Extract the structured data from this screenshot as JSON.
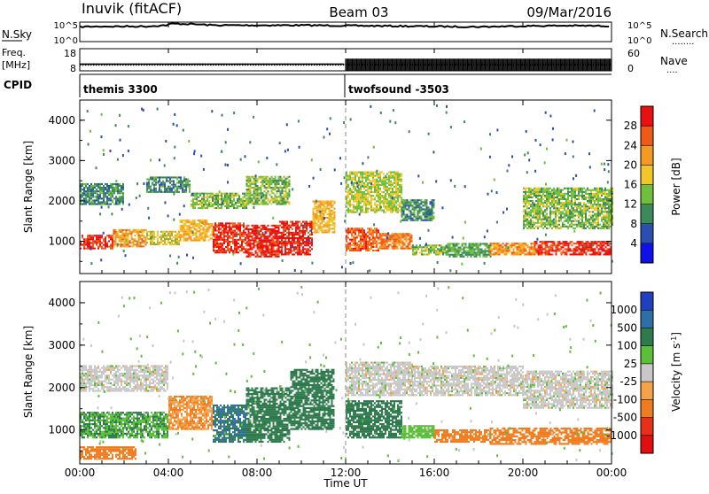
{
  "header": {
    "radar": "Inuvik (fitACF)",
    "beam": "Beam 03",
    "date": "09/Mar/2016"
  },
  "noise_panel": {
    "left_label": "N.Sky",
    "right_label": "N.Search",
    "right_marker": "........",
    "left_ticks": [
      "10^5",
      "10^0"
    ],
    "right_ticks": [
      "10^5",
      "10^0"
    ]
  },
  "freq_panel": {
    "left_label_line1": "Freq.",
    "left_label_line2": "[MHz]",
    "right_label": "Nave",
    "right_marker": "....",
    "left_ticks": [
      "18",
      "8"
    ],
    "right_ticks": [
      "60",
      "0"
    ]
  },
  "cpid": {
    "label": "CPID",
    "programs": [
      {
        "name": "themis 3300",
        "start_hour": 0
      },
      {
        "name": "twofsound -3503",
        "start_hour": 12
      }
    ]
  },
  "colors": {
    "power_scale": [
      "#1010e8",
      "#2a4fb0",
      "#3c8a5a",
      "#6fbf3c",
      "#f2c62a",
      "#f39a22",
      "#ee5a18",
      "#e81010"
    ],
    "velocity_scale": [
      "#2040c0",
      "#2f6fa8",
      "#2e7a4c",
      "#5cbf3a",
      "#c8c8c8",
      "#f5a24a",
      "#ef7c1f",
      "#e83018",
      "#e01010"
    ]
  },
  "chart_data": [
    {
      "type": "line",
      "title": "N.Sky / N.Search",
      "x_unit": "hours UT",
      "xlim": [
        0,
        24
      ],
      "y_scale": "log",
      "ylim": [
        1,
        100000
      ],
      "series": [
        {
          "name": "N.Sky",
          "x": [
            0,
            1,
            2,
            3,
            3.9,
            4.2,
            5,
            6,
            8,
            10,
            12,
            14,
            16,
            18,
            20,
            22,
            24
          ],
          "y": [
            6300,
            7900,
            7900,
            7900,
            15800,
            39800,
            31600,
            15800,
            15800,
            15800,
            12600,
            10000,
            7900,
            6300,
            10000,
            12600,
            10000
          ]
        }
      ]
    },
    {
      "type": "line",
      "title": "Freq. / Nave",
      "x_unit": "hours UT",
      "xlim": [
        0,
        24
      ],
      "ylim_left": [
        8,
        18
      ],
      "ylim_right": [
        0,
        60
      ],
      "series": [
        {
          "name": "Freq.",
          "x": [
            0,
            11.9,
            12,
            24
          ],
          "y": [
            10.9,
            10.9,
            10.9,
            10.9
          ]
        },
        {
          "name": "Nave",
          "x": [
            0,
            11.9,
            12,
            24
          ],
          "y": [
            20,
            20,
            33,
            33
          ]
        }
      ]
    },
    {
      "type": "heatmap",
      "xlabel": "Time UT",
      "ylabel": "Slant Range [km]",
      "xlim": [
        0,
        24
      ],
      "ylim": [
        200,
        4500
      ],
      "x_ticks": [
        "00:00",
        "04:00",
        "08:00",
        "12:00",
        "16:00",
        "20:00",
        "00:00"
      ],
      "y_ticks": [
        1000,
        2000,
        3000,
        4000
      ],
      "colorbar": {
        "label": "Power [dB]",
        "range": [
          0,
          32
        ],
        "ticks": [
          "4",
          "8",
          "12",
          "16",
          "20",
          "24",
          "28"
        ]
      },
      "bands": [
        {
          "t": [
            0.0,
            1.5
          ],
          "r": [
            800,
            1150
          ],
          "value": 28
        },
        {
          "t": [
            1.5,
            3.0
          ],
          "r": [
            850,
            1300
          ],
          "value": 22
        },
        {
          "t": [
            3.0,
            4.5
          ],
          "r": [
            900,
            1250
          ],
          "value": 18
        },
        {
          "t": [
            4.5,
            6.0
          ],
          "r": [
            1000,
            1500
          ],
          "value": 20
        },
        {
          "t": [
            6.0,
            7.5
          ],
          "r": [
            700,
            1450
          ],
          "value": 28
        },
        {
          "t": [
            7.5,
            9.0
          ],
          "r": [
            600,
            1400
          ],
          "value": 30
        },
        {
          "t": [
            9.0,
            10.5
          ],
          "r": [
            650,
            1500
          ],
          "value": 30
        },
        {
          "t": [
            10.5,
            11.5
          ],
          "r": [
            1200,
            2000
          ],
          "value": 20
        },
        {
          "t": [
            12.0,
            13.5
          ],
          "r": [
            750,
            1300
          ],
          "value": 26
        },
        {
          "t": [
            13.5,
            15.0
          ],
          "r": [
            800,
            1200
          ],
          "value": 24
        },
        {
          "t": [
            15.0,
            16.5
          ],
          "r": [
            650,
            900
          ],
          "value": 14
        },
        {
          "t": [
            16.5,
            18.5
          ],
          "r": [
            600,
            950
          ],
          "value": 12
        },
        {
          "t": [
            18.5,
            20.5
          ],
          "r": [
            650,
            950
          ],
          "value": 22
        },
        {
          "t": [
            20.5,
            22.5
          ],
          "r": [
            650,
            1000
          ],
          "value": 28
        },
        {
          "t": [
            22.5,
            24.0
          ],
          "r": [
            650,
            1000
          ],
          "value": 30
        },
        {
          "t": [
            0.0,
            2.0
          ],
          "r": [
            1900,
            2400
          ],
          "value": 10
        },
        {
          "t": [
            3.0,
            5.0
          ],
          "r": [
            2200,
            2600
          ],
          "value": 10
        },
        {
          "t": [
            5.0,
            7.5
          ],
          "r": [
            1800,
            2200
          ],
          "value": 14
        },
        {
          "t": [
            7.5,
            9.5
          ],
          "r": [
            1900,
            2600
          ],
          "value": 14
        },
        {
          "t": [
            12.0,
            14.5
          ],
          "r": [
            1700,
            2700
          ],
          "value": 16
        },
        {
          "t": [
            14.5,
            16.0
          ],
          "r": [
            1500,
            2000
          ],
          "value": 10
        },
        {
          "t": [
            20.0,
            24.0
          ],
          "r": [
            1300,
            2300
          ],
          "value": 14
        }
      ]
    },
    {
      "type": "heatmap",
      "xlabel": "Time UT",
      "ylabel": "Slant Range [km]",
      "xlim": [
        0,
        24
      ],
      "ylim": [
        200,
        4500
      ],
      "x_ticks": [
        "00:00",
        "04:00",
        "08:00",
        "12:00",
        "16:00",
        "20:00",
        "00:00"
      ],
      "y_ticks": [
        1000,
        2000,
        3000,
        4000
      ],
      "colorbar": {
        "label": "Velocity [m s^-1]",
        "ticks": [
          "1000",
          "500",
          "100",
          "25",
          "-25",
          "-100",
          "-500",
          "-1000"
        ]
      },
      "bands": [
        {
          "t": [
            0.0,
            4.0
          ],
          "r": [
            800,
            1400
          ],
          "value": 100
        },
        {
          "t": [
            4.0,
            6.0
          ],
          "r": [
            1000,
            1800
          ],
          "value": -100
        },
        {
          "t": [
            6.0,
            7.5
          ],
          "r": [
            700,
            1600
          ],
          "value": 500
        },
        {
          "t": [
            7.5,
            9.5
          ],
          "r": [
            700,
            2000
          ],
          "value": 300
        },
        {
          "t": [
            9.5,
            11.5
          ],
          "r": [
            1000,
            2400
          ],
          "value": 300
        },
        {
          "t": [
            12.0,
            14.5
          ],
          "r": [
            800,
            1700
          ],
          "value": 300
        },
        {
          "t": [
            14.5,
            16.0
          ],
          "r": [
            800,
            1100
          ],
          "value": 60
        },
        {
          "t": [
            16.0,
            18.5
          ],
          "r": [
            700,
            1000
          ],
          "value": -150
        },
        {
          "t": [
            18.5,
            24.0
          ],
          "r": [
            650,
            1050
          ],
          "value": -300
        },
        {
          "t": [
            0.0,
            4.0
          ],
          "r": [
            1900,
            2500
          ],
          "value": 0
        },
        {
          "t": [
            12.0,
            15.0
          ],
          "r": [
            1800,
            2600
          ],
          "value": 0
        },
        {
          "t": [
            15.0,
            20.0
          ],
          "r": [
            1800,
            2500
          ],
          "value": 0
        },
        {
          "t": [
            20.0,
            24.0
          ],
          "r": [
            1500,
            2400
          ],
          "value": 0
        },
        {
          "t": [
            0.0,
            2.5
          ],
          "r": [
            300,
            600
          ],
          "value": -200
        }
      ]
    }
  ]
}
